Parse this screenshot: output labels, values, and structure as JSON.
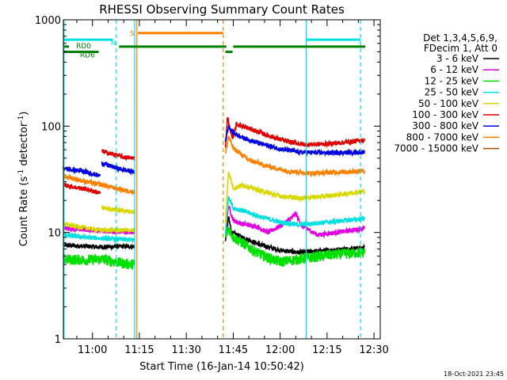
{
  "chart_data": {
    "type": "line",
    "title": "RHESSI Observing Summary Count Rates",
    "xlabel": "Start Time (16-Jan-14 10:50:42)",
    "ylabel_prefix": "Count Rate (s",
    "ylabel_mid": " detector",
    "ylabel_suffix": ")",
    "ylabel_exp": "-1",
    "yscale": "log",
    "ylim": [
      1,
      1000
    ],
    "xlim_min": [
      650.7,
      752
    ],
    "y_ticks": [
      {
        "v": 1,
        "label": "1"
      },
      {
        "v": 10,
        "label": "10"
      },
      {
        "v": 100,
        "label": "100"
      },
      {
        "v": 1000,
        "label": "1000"
      }
    ],
    "x_ticks": [
      {
        "v": 660,
        "label": "11:00"
      },
      {
        "v": 675,
        "label": "11:15"
      },
      {
        "v": 690,
        "label": "11:30"
      },
      {
        "v": 705,
        "label": "11:45"
      },
      {
        "v": 720,
        "label": "12:00"
      },
      {
        "v": 735,
        "label": "12:15"
      },
      {
        "v": 750,
        "label": "12:30"
      }
    ],
    "legend": {
      "placement": "right",
      "header": [
        "Det 1,3,4,5,6,9,",
        "FDecim 1, Att 0"
      ],
      "entries": [
        {
          "label": "3 - 6 keV",
          "color": "#000000"
        },
        {
          "label": "6 - 12 keV",
          "color": "#e000e0"
        },
        {
          "label": "12 - 25 keV",
          "color": "#00e000"
        },
        {
          "label": "25 - 50 keV",
          "color": "#00e0e0"
        },
        {
          "label": "50 - 100 keV",
          "color": "#d8d800"
        },
        {
          "label": "100 - 300 keV",
          "color": "#e00000"
        },
        {
          "label": "300 - 800 keV",
          "color": "#0000e0"
        },
        {
          "label": "800 - 7000 keV",
          "color": "#ff8000"
        },
        {
          "label": "7000 - 15000 keV",
          "color": "#a05000"
        }
      ]
    },
    "series": [
      {
        "name": "3 - 6 keV",
        "color": "#000000",
        "segments": [
          [
            [
              650.7,
              7.6
            ],
            [
              658,
              7.4
            ],
            [
              663,
              7.3
            ],
            [
              670,
              7.4
            ],
            [
              673.5,
              7.4
            ]
          ],
          [
            [
              702.5,
              8.2
            ],
            [
              703.5,
              14
            ],
            [
              704.5,
              10
            ],
            [
              708,
              9
            ],
            [
              714,
              7.6
            ],
            [
              720,
              6.8
            ],
            [
              726,
              6.5
            ],
            [
              735,
              6.8
            ],
            [
              747,
              7.2
            ]
          ]
        ]
      },
      {
        "name": "6 - 12 keV",
        "color": "#e000e0",
        "segments": [
          [
            [
              650.7,
              11
            ],
            [
              658,
              10.6
            ],
            [
              663,
              10.3
            ],
            [
              670,
              10.1
            ],
            [
              673.5,
              10
            ]
          ],
          [
            [
              702.5,
              10
            ],
            [
              703.5,
              18
            ],
            [
              705,
              13
            ],
            [
              708,
              12
            ],
            [
              712,
              11.5
            ],
            [
              716,
              10
            ],
            [
              720,
              11.5
            ],
            [
              724,
              14
            ],
            [
              725,
              15
            ],
            [
              727,
              11.5
            ],
            [
              732,
              9.5
            ],
            [
              738,
              10
            ],
            [
              744,
              10.6
            ],
            [
              747,
              11
            ]
          ]
        ]
      },
      {
        "name": "12 - 25 keV",
        "color": "#00e000",
        "segments": [
          [
            [
              650.7,
              5.6
            ],
            [
              658,
              5.5
            ],
            [
              663,
              5.6
            ],
            [
              670,
              5.1
            ],
            [
              673.5,
              5.0
            ]
          ],
          [
            [
              702.5,
              9
            ],
            [
              703.5,
              11
            ],
            [
              705,
              9
            ],
            [
              708,
              8
            ],
            [
              712,
              6.6
            ],
            [
              716,
              5.8
            ],
            [
              720,
              5.3
            ],
            [
              726,
              5.6
            ],
            [
              735,
              6.1
            ],
            [
              747,
              6.5
            ]
          ]
        ]
      },
      {
        "name": "25 - 50 keV",
        "color": "#00e0e0",
        "segments": [
          [
            [
              650.7,
              9.5
            ],
            [
              658,
              9.0
            ],
            [
              663,
              8.8
            ],
            [
              670,
              8.6
            ],
            [
              673.5,
              8.5
            ]
          ],
          [
            [
              702.5,
              9.5
            ],
            [
              703.5,
              22
            ],
            [
              705,
              17
            ],
            [
              708,
              16
            ],
            [
              714,
              14
            ],
            [
              720,
              12.5
            ],
            [
              726,
              11.8
            ],
            [
              735,
              12.5
            ],
            [
              747,
              13.5
            ]
          ]
        ]
      },
      {
        "name": "50 - 100 keV",
        "color": "#d8d800",
        "segments": [
          [
            [
              650.7,
              12
            ],
            [
              658,
              11
            ],
            [
              663,
              10.5
            ],
            [
              670,
              10.5
            ],
            [
              673.5,
              10.5
            ]
          ],
          [
            [
              663,
              17
            ],
            [
              670,
              16
            ],
            [
              673.5,
              15.5
            ]
          ],
          [
            [
              702.5,
              12
            ],
            [
              703.5,
              38
            ],
            [
              705,
              26
            ],
            [
              708,
              28
            ],
            [
              714,
              24.5
            ],
            [
              720,
              22
            ],
            [
              726,
              21
            ],
            [
              735,
              22
            ],
            [
              747,
              24.5
            ]
          ]
        ]
      },
      {
        "name": "100 - 300 keV",
        "color": "#e00000",
        "segments": [
          [
            [
              650.7,
              28
            ],
            [
              658,
              25.5
            ],
            [
              662.5,
              23.5
            ]
          ],
          [
            [
              663,
              58
            ],
            [
              667,
              54
            ],
            [
              670,
              51
            ],
            [
              673.5,
              50
            ]
          ],
          [
            [
              702.5,
              65
            ],
            [
              703.2,
              125
            ],
            [
              704,
              90
            ],
            [
              705,
              78
            ],
            [
              706,
              105
            ],
            [
              710,
              95
            ],
            [
              716,
              82
            ],
            [
              722,
              72
            ],
            [
              728,
              67
            ],
            [
              735,
              68
            ],
            [
              742,
              71
            ],
            [
              747,
              74
            ]
          ]
        ]
      },
      {
        "name": "300 - 800 keV",
        "color": "#0000e0",
        "segments": [
          [
            [
              650.7,
              40
            ],
            [
              658,
              37
            ],
            [
              662.5,
              34
            ]
          ],
          [
            [
              663,
              45
            ],
            [
              668,
              40
            ],
            [
              673.5,
              37
            ]
          ],
          [
            [
              702.5,
              72
            ],
            [
              703.5,
              100
            ],
            [
              705,
              87
            ],
            [
              708,
              78
            ],
            [
              714,
              68
            ],
            [
              720,
              61
            ],
            [
              726,
              57
            ],
            [
              735,
              56
            ],
            [
              747,
              57
            ]
          ]
        ]
      },
      {
        "name": "800 - 7000 keV",
        "color": "#ff8000",
        "segments": [
          [
            [
              650.7,
              34
            ],
            [
              658,
              30
            ],
            [
              663,
              28
            ],
            [
              670,
              25
            ],
            [
              673.5,
              24
            ]
          ],
          [
            [
              702.5,
              55
            ],
            [
              703.5,
              80
            ],
            [
              705,
              62
            ],
            [
              710,
              48
            ],
            [
              716,
              42
            ],
            [
              722,
              38
            ],
            [
              730,
              36
            ],
            [
              738,
              37
            ],
            [
              747,
              38
            ]
          ]
        ]
      },
      {
        "name": "7000 - 15000 keV",
        "color": "#a05000",
        "segments": []
      }
    ],
    "vertical_lines": [
      {
        "t": 650.9,
        "color": "#00e0e0",
        "style": "solid"
      },
      {
        "t": 667.6,
        "color": "#00e0e0",
        "style": "dashed"
      },
      {
        "t": 673.5,
        "color": "#00e0e0",
        "style": "solid"
      },
      {
        "t": 674.2,
        "color": "#ff8000",
        "style": "solid"
      },
      {
        "t": 701.8,
        "color": "#ff8000",
        "style": "dashed"
      },
      {
        "t": 728.3,
        "color": "#00e0e0",
        "style": "solid"
      },
      {
        "t": 745.7,
        "color": "#00e0e0",
        "style": "dashed"
      }
    ],
    "state_bars": [
      {
        "label": "N",
        "color": "#00e0e0",
        "y": 650,
        "segments": [
          [
            650.7,
            666.5
          ],
          [
            728.3,
            745.7
          ]
        ]
      },
      {
        "label": "S",
        "color": "#ff8000",
        "y": 750,
        "segments": [
          [
            674.5,
            701.8
          ]
        ]
      },
      {
        "label": "RD0",
        "color": "#008000",
        "y": 560,
        "segments": [
          [
            651,
            652.5
          ],
          [
            668.5,
            702.8
          ],
          [
            705,
            747.2
          ]
        ]
      },
      {
        "label": "RD6",
        "color": "#008000",
        "y": 500,
        "segments": [
          [
            650.7,
            662
          ],
          [
            702.5,
            704.8
          ]
        ]
      }
    ]
  },
  "footer": {
    "date": "18-Oct-2021 23:45"
  }
}
